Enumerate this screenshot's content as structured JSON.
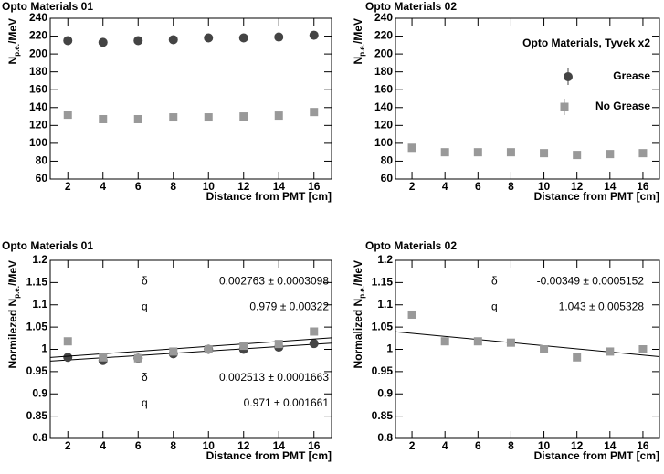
{
  "chart_data": [
    {
      "type": "scatter",
      "title": "Opto Materials 01",
      "xlabel": "Distance from PMT [cm]",
      "ylabel": {
        "main": "N",
        "sub": "p.e.",
        "unit": "/MeV"
      },
      "xlim": [
        1,
        17
      ],
      "xticks": [
        2,
        4,
        6,
        8,
        10,
        12,
        14,
        16
      ],
      "ylim": [
        60,
        240
      ],
      "yticks": [
        60,
        80,
        100,
        120,
        140,
        160,
        180,
        200,
        220,
        240
      ],
      "x": [
        2,
        4,
        6,
        8,
        10,
        12,
        14,
        16
      ],
      "series": [
        {
          "name": "Grease",
          "color": "#444444",
          "marker": "circle",
          "values": [
            215,
            213,
            215,
            216,
            218,
            218,
            219,
            221
          ]
        },
        {
          "name": "No Grease",
          "color": "#999999",
          "marker": "square",
          "values": [
            132,
            127,
            127,
            129,
            129,
            130,
            131,
            135
          ]
        }
      ]
    },
    {
      "type": "scatter",
      "title": "Opto Materials 02",
      "xlabel": "Distance from PMT [cm]",
      "ylabel": {
        "main": "N",
        "sub": "p.e.",
        "unit": "/MeV"
      },
      "xlim": [
        1,
        17
      ],
      "xticks": [
        2,
        4,
        6,
        8,
        10,
        12,
        14,
        16
      ],
      "ylim": [
        60,
        240
      ],
      "yticks": [
        60,
        80,
        100,
        120,
        140,
        160,
        180,
        200,
        220,
        240
      ],
      "x": [
        2,
        4,
        6,
        8,
        10,
        12,
        14,
        16
      ],
      "series": [
        {
          "name": "No Grease",
          "color": "#999999",
          "marker": "square",
          "values": [
            95,
            90,
            90,
            90,
            89,
            87,
            88,
            89
          ]
        }
      ],
      "legend_title": "Opto Materials, Tyvek x2",
      "legend": [
        {
          "name": "Grease",
          "color": "#444444",
          "marker": "circle"
        },
        {
          "name": "No Grease",
          "color": "#999999",
          "marker": "square"
        }
      ]
    },
    {
      "type": "scatter",
      "title": "Opto Materials 01",
      "xlabel": "Distance from PMT [cm]",
      "ylabel": {
        "main": "Normilezed N",
        "sub": "p.e.",
        "unit": "/MeV"
      },
      "xlim": [
        1,
        17
      ],
      "xticks": [
        2,
        4,
        6,
        8,
        10,
        12,
        14,
        16
      ],
      "ylim": [
        0.8,
        1.2
      ],
      "yticks": [
        0.8,
        0.85,
        0.9,
        0.95,
        1,
        1.05,
        1.1,
        1.15,
        1.2
      ],
      "x": [
        2,
        4,
        6,
        8,
        10,
        12,
        14,
        16
      ],
      "series": [
        {
          "name": "Grease",
          "color": "#444444",
          "marker": "circle",
          "values": [
            0.982,
            0.975,
            0.98,
            0.99,
            1.0,
            1.0,
            1.005,
            1.013
          ],
          "fit": {
            "slope": 0.002513,
            "intercept": 0.971,
            "slope_symbol": "δ",
            "slope_text": "0.002513 ± 0.0001663",
            "intercept_symbol": "q",
            "intercept_text": "0.971 ± 0.001661"
          }
        },
        {
          "name": "No Grease",
          "color": "#999999",
          "marker": "square",
          "values": [
            1.018,
            0.982,
            0.98,
            0.995,
            1.0,
            1.008,
            1.012,
            1.04
          ],
          "fit": {
            "slope": 0.002763,
            "intercept": 0.979,
            "slope_symbol": "δ",
            "slope_text": "0.002763 ± 0.0003098",
            "intercept_symbol": "q",
            "intercept_text": "0.979 ± 0.00322"
          }
        }
      ]
    },
    {
      "type": "scatter",
      "title": "Opto Materials 02",
      "xlabel": "Distance from PMT [cm]",
      "ylabel": {
        "main": "Normalized N",
        "sub": "p.e.",
        "unit": "/MeV"
      },
      "xlim": [
        1,
        17
      ],
      "xticks": [
        2,
        4,
        6,
        8,
        10,
        12,
        14,
        16
      ],
      "ylim": [
        0.8,
        1.2
      ],
      "yticks": [
        0.8,
        0.85,
        0.9,
        0.95,
        1,
        1.05,
        1.1,
        1.15,
        1.2
      ],
      "x": [
        2,
        4,
        6,
        8,
        10,
        12,
        14,
        16
      ],
      "series": [
        {
          "name": "No Grease",
          "color": "#999999",
          "marker": "square",
          "values": [
            1.078,
            1.018,
            1.018,
            1.015,
            1.0,
            0.982,
            0.995,
            1.0
          ],
          "fit": {
            "slope": -0.00349,
            "intercept": 1.043,
            "slope_symbol": "δ",
            "slope_text": "-0.00349 ± 0.0005152",
            "intercept_symbol": "q",
            "intercept_text": "1.043 ± 0.005328"
          }
        }
      ]
    }
  ]
}
